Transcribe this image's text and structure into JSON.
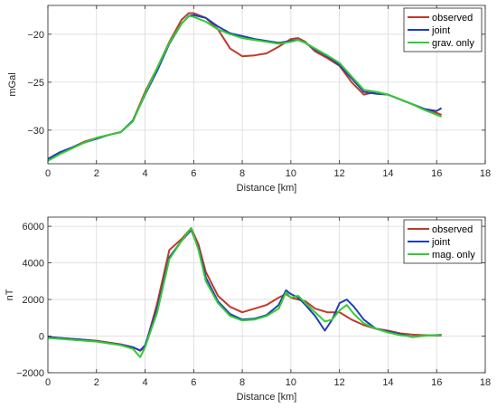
{
  "chart_data": [
    {
      "type": "line",
      "xlabel": "Distance [km]",
      "ylabel": "mGal",
      "xlim": [
        0,
        18
      ],
      "ylim": [
        -33.5,
        -17
      ],
      "xticks": [
        0,
        2,
        4,
        6,
        8,
        10,
        12,
        14,
        16,
        18
      ],
      "yticks": [
        -30,
        -25,
        -20
      ],
      "grid": true,
      "legend_position": "top-right",
      "series": [
        {
          "name": "observed",
          "color": "#c0392b",
          "x": [
            0,
            0.5,
            1,
            1.5,
            2,
            2.5,
            3,
            3.5,
            4,
            4.5,
            5,
            5.5,
            5.8,
            6,
            6.5,
            7,
            7.5,
            8,
            8.5,
            9,
            9.5,
            10,
            10.3,
            10.6,
            11,
            11.5,
            12,
            12.5,
            13,
            13.5,
            14,
            14.5,
            15,
            15.5,
            16,
            16.2
          ],
          "y": [
            -33,
            -32.3,
            -31.8,
            -31.2,
            -30.8,
            -30.5,
            -30.2,
            -29.0,
            -26.0,
            -23.5,
            -20.8,
            -18.5,
            -17.8,
            -17.8,
            -18.3,
            -19.5,
            -21.5,
            -22.3,
            -22.2,
            -22.0,
            -21.3,
            -20.5,
            -20.4,
            -20.8,
            -21.8,
            -22.5,
            -23.3,
            -25.0,
            -26.3,
            -26.0,
            -26.3,
            -26.8,
            -27.3,
            -27.8,
            -28.2,
            -28.4
          ]
        },
        {
          "name": "joint",
          "color": "#1f3fb8",
          "x": [
            0,
            0.5,
            1,
            1.5,
            2,
            2.5,
            3,
            3.5,
            4,
            4.5,
            5,
            5.5,
            5.8,
            6,
            6.5,
            7,
            7.5,
            8,
            8.5,
            9,
            9.5,
            10,
            10.3,
            10.6,
            11,
            11.5,
            12,
            12.5,
            13,
            13.5,
            14,
            14.5,
            15,
            15.5,
            16,
            16.2
          ],
          "y": [
            -33,
            -32.3,
            -31.8,
            -31.3,
            -30.9,
            -30.5,
            -30.2,
            -29.0,
            -26.3,
            -23.8,
            -21.0,
            -18.9,
            -18.1,
            -18.0,
            -18.3,
            -19.2,
            -19.9,
            -20.2,
            -20.5,
            -20.7,
            -20.9,
            -20.7,
            -20.6,
            -20.9,
            -21.6,
            -22.3,
            -23.2,
            -24.6,
            -26.0,
            -26.2,
            -26.3,
            -26.8,
            -27.3,
            -27.8,
            -28.0,
            -27.7
          ]
        },
        {
          "name": "grav. only",
          "color": "#33cc33",
          "x": [
            0,
            0.5,
            1,
            1.5,
            2,
            2.5,
            3,
            3.5,
            4,
            4.5,
            5,
            5.5,
            5.8,
            6,
            6.5,
            7,
            7.5,
            8,
            8.5,
            9,
            9.5,
            10,
            10.3,
            10.6,
            11,
            11.5,
            12,
            12.5,
            13,
            13.5,
            14,
            14.5,
            15,
            15.5,
            16,
            16.2
          ],
          "y": [
            -33.2,
            -32.5,
            -31.9,
            -31.3,
            -30.8,
            -30.5,
            -30.2,
            -29.1,
            -26.2,
            -23.5,
            -20.9,
            -18.9,
            -18.1,
            -18.2,
            -18.7,
            -19.5,
            -20.0,
            -20.4,
            -20.6,
            -20.8,
            -21.0,
            -20.8,
            -20.6,
            -20.9,
            -21.5,
            -22.2,
            -23.0,
            -24.4,
            -25.8,
            -26.0,
            -26.3,
            -26.8,
            -27.3,
            -27.9,
            -28.4,
            -28.6
          ]
        }
      ]
    },
    {
      "type": "line",
      "xlabel": "Distance [km]",
      "ylabel": "nT",
      "xlim": [
        0,
        18
      ],
      "ylim": [
        -2000,
        6500
      ],
      "xticks": [
        0,
        2,
        4,
        6,
        8,
        10,
        12,
        14,
        16,
        18
      ],
      "yticks": [
        -2000,
        0,
        2000,
        4000,
        6000
      ],
      "grid": true,
      "legend_position": "top-right",
      "series": [
        {
          "name": "observed",
          "color": "#c0392b",
          "x": [
            0,
            0.5,
            1,
            1.5,
            2,
            2.5,
            3,
            3.5,
            3.8,
            4,
            4.5,
            5,
            5.5,
            5.9,
            6.2,
            6.5,
            7,
            7.5,
            8,
            8.5,
            9,
            9.5,
            9.8,
            10,
            10.3,
            10.6,
            11,
            11.5,
            12,
            12.5,
            13,
            13.5,
            14,
            14.5,
            15,
            15.5,
            16,
            16.2
          ],
          "y": [
            -50,
            -100,
            -150,
            -200,
            -250,
            -350,
            -450,
            -600,
            -800,
            -600,
            1800,
            4700,
            5300,
            5900,
            5000,
            3500,
            2200,
            1600,
            1300,
            1500,
            1700,
            2100,
            2300,
            2100,
            2000,
            1900,
            1500,
            1300,
            1300,
            900,
            600,
            400,
            300,
            150,
            80,
            50,
            20,
            30
          ]
        },
        {
          "name": "joint",
          "color": "#1f3fb8",
          "x": [
            0,
            0.5,
            1,
            1.5,
            2,
            2.5,
            3,
            3.5,
            3.8,
            4,
            4.5,
            5,
            5.5,
            5.9,
            6.2,
            6.5,
            7,
            7.5,
            8,
            8.5,
            9,
            9.5,
            9.8,
            10,
            10.3,
            10.6,
            11,
            11.4,
            11.7,
            12,
            12.3,
            12.6,
            13,
            13.5,
            14,
            14.5,
            15,
            15.5,
            16,
            16.2
          ],
          "y": [
            -50,
            -100,
            -150,
            -200,
            -280,
            -380,
            -480,
            -620,
            -780,
            -500,
            1500,
            4300,
            5200,
            5800,
            4800,
            3200,
            1900,
            1200,
            900,
            950,
            1150,
            1700,
            2500,
            2300,
            2100,
            1700,
            1100,
            300,
            900,
            1800,
            2000,
            1600,
            900,
            400,
            250,
            100,
            -50,
            20,
            50,
            80
          ]
        },
        {
          "name": "mag. only",
          "color": "#33cc33",
          "x": [
            0,
            0.5,
            1,
            1.5,
            2,
            2.5,
            3,
            3.5,
            3.8,
            4,
            4.5,
            5,
            5.5,
            5.9,
            6.2,
            6.5,
            7,
            7.5,
            8,
            8.5,
            9,
            9.5,
            9.8,
            10,
            10.3,
            10.6,
            11,
            11.4,
            11.7,
            12,
            12.3,
            12.6,
            13,
            13.5,
            14,
            14.5,
            15,
            15.5,
            16,
            16.2
          ],
          "y": [
            -100,
            -150,
            -200,
            -250,
            -300,
            -400,
            -500,
            -700,
            -1150,
            -600,
            1300,
            4200,
            5200,
            5900,
            4700,
            3000,
            1800,
            1100,
            850,
            900,
            1100,
            1500,
            2400,
            2100,
            2200,
            1800,
            1300,
            800,
            900,
            1400,
            1700,
            1200,
            700,
            400,
            200,
            50,
            -30,
            20,
            40,
            60
          ]
        }
      ]
    }
  ]
}
